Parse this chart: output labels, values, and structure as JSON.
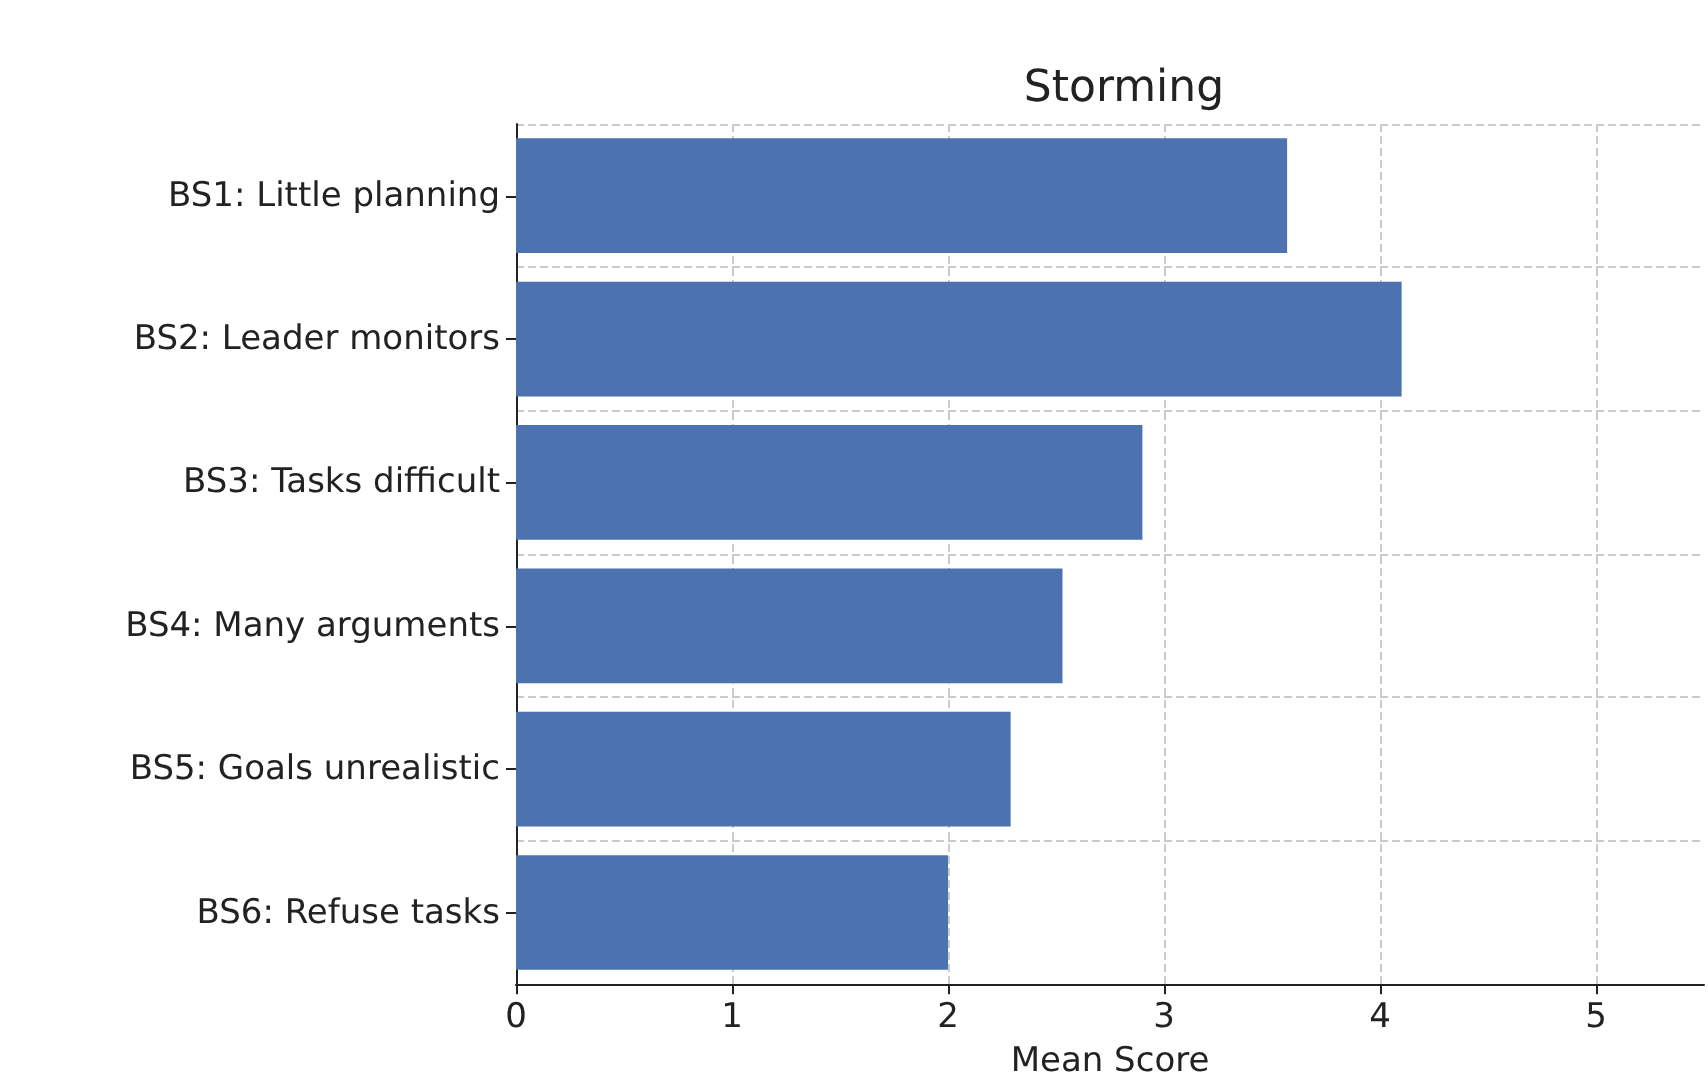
{
  "chart_data": {
    "type": "bar",
    "orientation": "horizontal",
    "title": "Storming",
    "xlabel": "Mean Score",
    "categories": [
      "BS1: Little planning",
      "BS2: Leader monitors",
      "BS3: Tasks difficult",
      "BS4: Many arguments",
      "BS5: Goals unrealistic",
      "BS6: Refuse tasks"
    ],
    "values": [
      3.57,
      4.1,
      2.9,
      2.53,
      2.29,
      2.0
    ],
    "color": "#4c72b0",
    "xlim": [
      0,
      5.5
    ],
    "xticks": [
      0,
      1,
      2,
      3,
      4,
      5
    ],
    "grid": true
  }
}
